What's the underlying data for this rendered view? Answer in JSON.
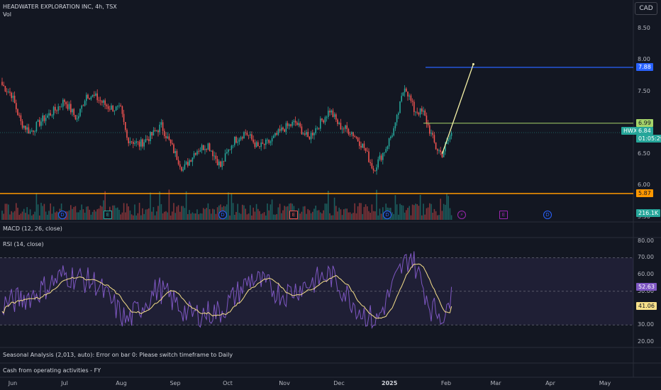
{
  "header": {
    "title": "HEADWATER EXPLORATION INC, 4h, TSX",
    "vol_label": "Vol",
    "currency": "CAD"
  },
  "price_axis": {
    "ticks": [
      "8.50",
      "8.00",
      "7.50",
      "7.00",
      "6.50",
      "6.00",
      "5.50"
    ],
    "tick_values": [
      8.5,
      8.0,
      7.5,
      7.0,
      6.5,
      6.0,
      5.5
    ],
    "range": [
      5.45,
      8.75
    ]
  },
  "levels": {
    "blue": {
      "label": "7.88",
      "value": 7.88,
      "color": "#2962ff"
    },
    "green": {
      "label": "6.99",
      "value": 6.99,
      "color": "#a5d46a"
    },
    "orange": {
      "label": "5.87",
      "value": 5.87,
      "color": "#ff9800"
    }
  },
  "last_price": {
    "ticker": "HWX",
    "price": "6.84",
    "countdown": "01:05:29",
    "value": 6.84
  },
  "volume": {
    "label": "216.1K"
  },
  "macd": {
    "label": "MACD (12, 26, close)"
  },
  "rsi": {
    "label": "RSI (14, close)",
    "ticks": [
      "80.00",
      "70.00",
      "60.00",
      "50.00",
      "40.00",
      "30.00",
      "20.00"
    ],
    "tick_values": [
      80,
      70,
      60,
      50,
      40,
      30,
      20
    ],
    "range": [
      17,
      82
    ],
    "bands": [
      70,
      50,
      30
    ],
    "rsi_label": "52.63",
    "rsi_value": 52.63,
    "ma_label": "41.06",
    "ma_value": 41.06
  },
  "seasonal": {
    "label": "Seasonal Analysis (2,013, auto): Error on bar 0: Please switch timeframe to Daily"
  },
  "cashflow": {
    "label": "Cash from operating activities - FY"
  },
  "time_axis": {
    "labels": [
      "Jun",
      "Jul",
      "Aug",
      "Sep",
      "Oct",
      "Nov",
      "Dec",
      "2025",
      "Feb",
      "Mar",
      "Apr",
      "May"
    ]
  },
  "events": [
    {
      "type": "D",
      "color": "#2962ff"
    },
    {
      "type": "E",
      "color": "#26a69a"
    },
    {
      "type": "D",
      "color": "#2962ff"
    },
    {
      "type": "D",
      "color": "#2962ff"
    },
    {
      "type": "E",
      "color": "#ef5350"
    },
    {
      "type": "D",
      "color": "#2962ff"
    },
    {
      "type": "⚡",
      "color": "#9c27b0"
    },
    {
      "type": "E",
      "color": "#9c27b0"
    },
    {
      "type": "D",
      "color": "#2962ff"
    }
  ],
  "chart_data": {
    "type": "candlestick",
    "title": "HEADWATER EXPLORATION INC, 4h, TSX",
    "timeframe": "4h",
    "exchange": "TSX",
    "currency": "CAD",
    "ylim": [
      5.45,
      8.75
    ],
    "anchors": [
      {
        "i": 0,
        "c": 7.6
      },
      {
        "i": 6,
        "c": 7.45
      },
      {
        "i": 12,
        "c": 7.0
      },
      {
        "i": 18,
        "c": 6.85
      },
      {
        "i": 26,
        "c": 7.05
      },
      {
        "i": 34,
        "c": 7.2
      },
      {
        "i": 40,
        "c": 7.35
      },
      {
        "i": 48,
        "c": 7.05
      },
      {
        "i": 54,
        "c": 7.45
      },
      {
        "i": 60,
        "c": 7.4
      },
      {
        "i": 68,
        "c": 7.25
      },
      {
        "i": 76,
        "c": 7.2
      },
      {
        "i": 80,
        "c": 6.75
      },
      {
        "i": 88,
        "c": 6.65
      },
      {
        "i": 96,
        "c": 6.8
      },
      {
        "i": 102,
        "c": 6.95
      },
      {
        "i": 110,
        "c": 6.55
      },
      {
        "i": 116,
        "c": 6.25
      },
      {
        "i": 124,
        "c": 6.55
      },
      {
        "i": 132,
        "c": 6.65
      },
      {
        "i": 140,
        "c": 6.3
      },
      {
        "i": 148,
        "c": 6.7
      },
      {
        "i": 156,
        "c": 6.85
      },
      {
        "i": 164,
        "c": 6.6
      },
      {
        "i": 172,
        "c": 6.7
      },
      {
        "i": 180,
        "c": 6.9
      },
      {
        "i": 188,
        "c": 7.0
      },
      {
        "i": 196,
        "c": 6.75
      },
      {
        "i": 204,
        "c": 7.0
      },
      {
        "i": 210,
        "c": 7.2
      },
      {
        "i": 216,
        "c": 6.95
      },
      {
        "i": 224,
        "c": 6.85
      },
      {
        "i": 232,
        "c": 6.6
      },
      {
        "i": 238,
        "c": 6.25
      },
      {
        "i": 246,
        "c": 6.6
      },
      {
        "i": 252,
        "c": 6.95
      },
      {
        "i": 258,
        "c": 7.6
      },
      {
        "i": 264,
        "c": 7.2
      },
      {
        "i": 270,
        "c": 7.15
      },
      {
        "i": 278,
        "c": 6.6
      },
      {
        "i": 282,
        "c": 6.5
      },
      {
        "i": 288,
        "c": 6.84
      }
    ],
    "n_bars": 289,
    "projection_line": {
      "from": {
        "i": 282,
        "price": 6.5
      },
      "to": {
        "i": 302,
        "price": 7.93
      }
    },
    "rsi_anchors": [
      {
        "i": 0,
        "v": 42
      },
      {
        "i": 20,
        "v": 48
      },
      {
        "i": 40,
        "v": 60
      },
      {
        "i": 60,
        "v": 55
      },
      {
        "i": 80,
        "v": 32
      },
      {
        "i": 100,
        "v": 52
      },
      {
        "i": 120,
        "v": 36
      },
      {
        "i": 140,
        "v": 38
      },
      {
        "i": 160,
        "v": 58
      },
      {
        "i": 180,
        "v": 48
      },
      {
        "i": 200,
        "v": 56
      },
      {
        "i": 210,
        "v": 60
      },
      {
        "i": 230,
        "v": 38
      },
      {
        "i": 240,
        "v": 32
      },
      {
        "i": 255,
        "v": 62
      },
      {
        "i": 262,
        "v": 72
      },
      {
        "i": 275,
        "v": 40
      },
      {
        "i": 285,
        "v": 35
      },
      {
        "i": 288,
        "v": 52.63
      }
    ]
  }
}
